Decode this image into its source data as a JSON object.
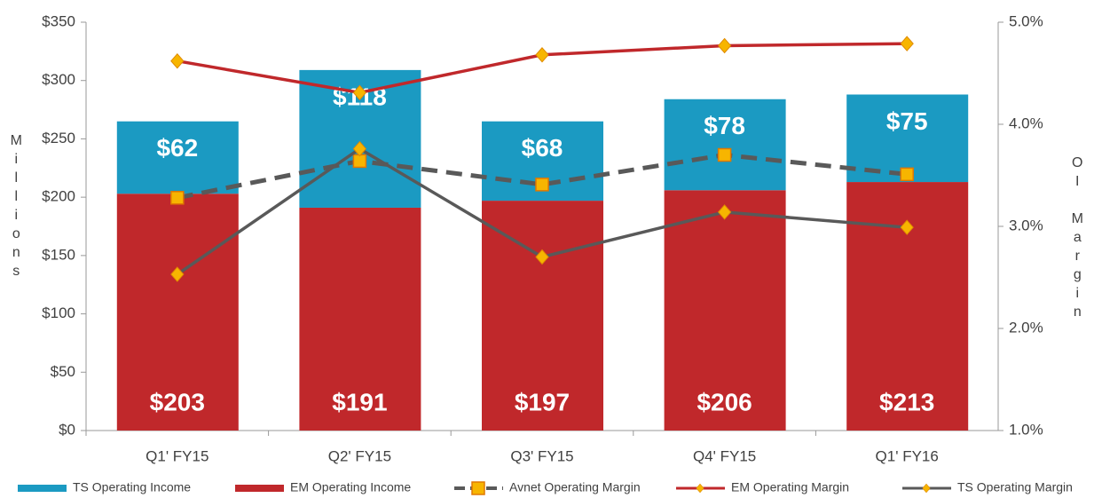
{
  "chart_data": {
    "type": "bar",
    "categories": [
      "Q1' FY15",
      "Q2' FY15",
      "Q3' FY15",
      "Q4' FY15",
      "Q1' FY16"
    ],
    "stacked": true,
    "series": [
      {
        "name": "TS Operating Income",
        "type": "bar",
        "color": "#1b9ac2",
        "values": [
          62,
          118,
          68,
          78,
          75
        ],
        "value_labels": [
          "$62",
          "$118",
          "$68",
          "$78",
          "$75"
        ]
      },
      {
        "name": "EM Operating Income",
        "type": "bar",
        "color": "#c0282b",
        "values": [
          203,
          191,
          197,
          206,
          213
        ],
        "value_labels": [
          "$203",
          "$191",
          "$197",
          "$206",
          "$213"
        ]
      },
      {
        "name": "Avnet Operating Margin",
        "type": "line",
        "axis": "y2",
        "color": "#595959",
        "dashed": true,
        "marker": "square",
        "marker_color": "#f7b500",
        "values": [
          3.28,
          3.64,
          3.41,
          3.7,
          3.51
        ]
      },
      {
        "name": "EM Operating Margin",
        "type": "line",
        "axis": "y2",
        "color": "#c0282b",
        "marker": "diamond",
        "marker_color": "#f7b500",
        "values": [
          4.62,
          4.31,
          4.68,
          4.77,
          4.79
        ]
      },
      {
        "name": "TS Operating Margin",
        "type": "line",
        "axis": "y2",
        "color": "#595959",
        "marker": "diamond",
        "marker_color": "#f7b500",
        "values": [
          2.53,
          3.76,
          2.7,
          3.14,
          2.99
        ]
      }
    ],
    "ylabel": "Millions",
    "y2label": "OI Margin",
    "ylim": [
      0,
      350
    ],
    "yticks": [
      {
        "value": 0,
        "label": "$0"
      },
      {
        "value": 50,
        "label": "$50"
      },
      {
        "value": 100,
        "label": "$100"
      },
      {
        "value": 150,
        "label": "$150"
      },
      {
        "value": 200,
        "label": "$200"
      },
      {
        "value": 250,
        "label": "$250"
      },
      {
        "value": 300,
        "label": "$300"
      },
      {
        "value": 350,
        "label": "$350"
      }
    ],
    "y2lim": [
      1,
      5
    ],
    "y2ticks": [
      {
        "value": 1,
        "label": "1.0%"
      },
      {
        "value": 2,
        "label": "2.0%"
      },
      {
        "value": 3,
        "label": "3.0%"
      },
      {
        "value": 4,
        "label": "4.0%"
      },
      {
        "value": 5,
        "label": "5.0%"
      }
    ],
    "legend": "bottom"
  }
}
